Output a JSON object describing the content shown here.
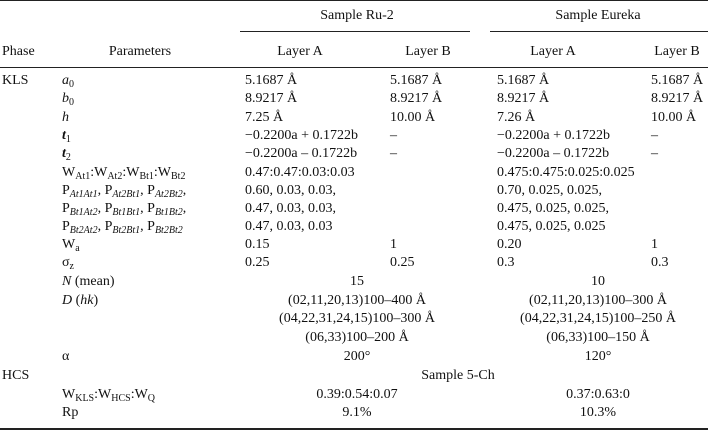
{
  "header": {
    "phase": "Phase",
    "parameters": "Parameters",
    "sample1": "Sample Ru-2",
    "sample2": "Sample Eureka",
    "layerA": "Layer A",
    "layerB": "Layer B"
  },
  "rows": [
    {
      "phase": "KLS",
      "param": [
        {
          "t": "a",
          "s": "it"
        },
        {
          "t": "0",
          "sub": true
        }
      ],
      "c1": "5.1687 Å",
      "c2": "5.1687 Å",
      "c3": "5.1687 Å",
      "c4": "5.1687 Å"
    },
    {
      "param": [
        {
          "t": "b",
          "s": "it"
        },
        {
          "t": "0",
          "sub": true
        }
      ],
      "c1": "8.9217 Å",
      "c2": "8.9217 Å",
      "c3": "8.9217 Å",
      "c4": "8.9217 Å"
    },
    {
      "param": [
        {
          "t": "h",
          "s": "it"
        }
      ],
      "c1": "7.25 Å",
      "c2": "10.00 Å",
      "c3": "7.26 Å",
      "c4": "10.00 Å"
    },
    {
      "param": [
        {
          "t": "t",
          "s": "bi"
        },
        {
          "t": "1",
          "sub": true
        }
      ],
      "c1": "−0.2200a + 0.1722b",
      "c2": "–",
      "c3": "−0.2200a + 0.1722b",
      "c4": "–"
    },
    {
      "param": [
        {
          "t": "t",
          "s": "bi"
        },
        {
          "t": "2",
          "sub": true
        }
      ],
      "c1": "−0.2200a – 0.1722b",
      "c2": "–",
      "c3": "−0.2200a – 0.1722b",
      "c4": "–"
    },
    {
      "param": [
        {
          "t": "W"
        },
        {
          "t": "At1",
          "sub": true
        },
        {
          "t": ":W"
        },
        {
          "t": "At2",
          "sub": true
        },
        {
          "t": ":W"
        },
        {
          "t": "Bt1",
          "sub": true
        },
        {
          "t": ":W"
        },
        {
          "t": "Bt2",
          "sub": true
        }
      ],
      "c1": "0.47:0.47:0.03:0.03",
      "c3": "0.475:0.475:0.025:0.025"
    },
    {
      "param": [
        {
          "t": "P"
        },
        {
          "t": "At1At1",
          "sub": true,
          "s": "it"
        },
        {
          "t": ", P"
        },
        {
          "t": "At2Bt1",
          "sub": true,
          "s": "it"
        },
        {
          "t": ", P"
        },
        {
          "t": "At2Bt2",
          "sub": true,
          "s": "it"
        },
        {
          "t": ","
        }
      ],
      "c1": "0.60, 0.03, 0.03,",
      "c3": "0.70, 0.025, 0.025,"
    },
    {
      "param": [
        {
          "t": "P"
        },
        {
          "t": "Bt1At2",
          "sub": true,
          "s": "it"
        },
        {
          "t": ", P"
        },
        {
          "t": "Bt1Bt1",
          "sub": true,
          "s": "it"
        },
        {
          "t": ", P"
        },
        {
          "t": "Bt1Bt2",
          "sub": true,
          "s": "it"
        },
        {
          "t": ","
        }
      ],
      "c1": "0.47, 0.03, 0.03,",
      "c3": "0.475, 0.025, 0.025,"
    },
    {
      "param": [
        {
          "t": "P"
        },
        {
          "t": "Bt2At2",
          "sub": true,
          "s": "it"
        },
        {
          "t": ", P"
        },
        {
          "t": "Bt2Bt1",
          "sub": true,
          "s": "it"
        },
        {
          "t": ", P"
        },
        {
          "t": "Bt2Bt2",
          "sub": true,
          "s": "it"
        }
      ],
      "c1": "0.47, 0.03, 0.03",
      "c3": "0.475, 0.025, 0.025"
    },
    {
      "param": [
        {
          "t": "W"
        },
        {
          "t": "a",
          "sub": true
        }
      ],
      "c1": "0.15",
      "c2": "1",
      "c3": "0.20",
      "c4": "1"
    },
    {
      "param": [
        {
          "t": "σ"
        },
        {
          "t": "z",
          "sub": true
        }
      ],
      "c1": "0.25",
      "c2": "0.25",
      "c3": "0.3",
      "c4": "0.3"
    },
    {
      "param": [
        {
          "t": "N",
          "s": "it"
        },
        {
          "t": " (mean)"
        }
      ],
      "m1": "15",
      "m2": "10"
    },
    {
      "param": [
        {
          "t": "D",
          "s": "it"
        },
        {
          "t": " ("
        },
        {
          "t": "hk",
          "s": "it"
        },
        {
          "t": ")"
        }
      ],
      "m1": "(02,11,20,13)100–400 Å",
      "m2": "(02,11,20,13)100–300 Å"
    },
    {
      "param": [],
      "m1": "(04,22,31,24,15)100–300 Å",
      "m2": "(04,22,31,24,15)100–250 Å"
    },
    {
      "param": [],
      "m1": "(06,33)100–200 Å",
      "m2": "(06,33)100–150 Å"
    },
    {
      "param": [
        {
          "t": "α"
        }
      ],
      "m1": "200°",
      "m2": "120°"
    },
    {
      "phase": "HCS",
      "param": [],
      "span": "Sample 5-Ch"
    },
    {
      "param": [
        {
          "t": "W"
        },
        {
          "t": "KLS",
          "sub": true
        },
        {
          "t": ":W"
        },
        {
          "t": "HCS",
          "sub": true
        },
        {
          "t": ":W"
        },
        {
          "t": "Q",
          "sub": true
        }
      ],
      "m1": "0.39:0.54:0.07",
      "m2": "0.37:0.63:0"
    },
    {
      "param": [
        {
          "t": "Rp"
        }
      ],
      "m1": "9.1%",
      "m2": "10.3%"
    }
  ]
}
